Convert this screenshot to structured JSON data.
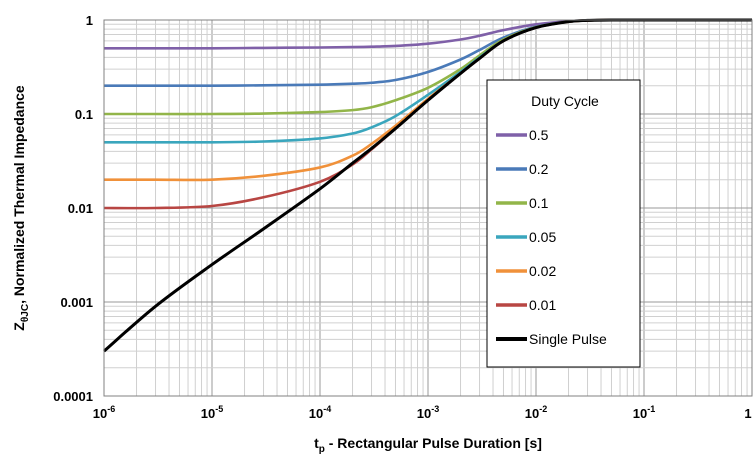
{
  "chart_data": {
    "type": "line",
    "xscale": "log",
    "yscale": "log",
    "xlim": [
      1e-06,
      1
    ],
    "ylim": [
      0.0001,
      1
    ],
    "grid": true,
    "legend_position": "right",
    "x_ticks": [
      {
        "base": "10",
        "exp": "-6"
      },
      {
        "base": "10",
        "exp": "-5"
      },
      {
        "base": "10",
        "exp": "-4"
      },
      {
        "base": "10",
        "exp": "-3"
      },
      {
        "base": "10",
        "exp": "-2"
      },
      {
        "base": "10",
        "exp": "-1"
      },
      {
        "base": "1",
        "exp": ""
      }
    ],
    "y_ticks": [
      "1",
      "0.1",
      "0.01",
      "0.001",
      "0.0001"
    ],
    "xlabel": {
      "pre": "t",
      "sub": "p",
      "post": " -  Rectangular Pulse Duration [s]"
    },
    "ylabel": {
      "pre": "Z",
      "sub": "θJC",
      "post": ", Normalized Thermal Impedance"
    },
    "legend_title": "Duty Cycle",
    "x": [
      1e-06,
      3e-06,
      1e-05,
      3e-05,
      0.0001,
      0.0002,
      0.0003,
      0.0005,
      0.001,
      0.002,
      0.003,
      0.005,
      0.01,
      0.02,
      0.03,
      0.05,
      0.1,
      1
    ],
    "series": [
      {
        "name": "0.5",
        "color": "#7f60a8",
        "values": [
          0.5,
          0.5,
          0.5,
          0.505,
          0.51,
          0.515,
          0.52,
          0.53,
          0.56,
          0.62,
          0.68,
          0.78,
          0.9,
          0.97,
          0.99,
          1,
          1,
          1
        ]
      },
      {
        "name": "0.2",
        "color": "#4a7ab8",
        "values": [
          0.2,
          0.2,
          0.2,
          0.202,
          0.205,
          0.21,
          0.215,
          0.23,
          0.28,
          0.38,
          0.48,
          0.65,
          0.85,
          0.96,
          0.99,
          1,
          1,
          1
        ]
      },
      {
        "name": "0.1",
        "color": "#92b549",
        "values": [
          0.1,
          0.1,
          0.1,
          0.101,
          0.105,
          0.11,
          0.118,
          0.14,
          0.19,
          0.3,
          0.42,
          0.62,
          0.84,
          0.96,
          0.99,
          1,
          1,
          1
        ]
      },
      {
        "name": "0.05",
        "color": "#3aa6bd",
        "values": [
          0.05,
          0.05,
          0.05,
          0.051,
          0.055,
          0.062,
          0.072,
          0.095,
          0.16,
          0.28,
          0.4,
          0.6,
          0.83,
          0.96,
          0.99,
          1,
          1,
          1
        ]
      },
      {
        "name": "0.02",
        "color": "#f0913a",
        "values": [
          0.02,
          0.02,
          0.02,
          0.022,
          0.027,
          0.036,
          0.048,
          0.075,
          0.145,
          0.27,
          0.39,
          0.6,
          0.83,
          0.96,
          0.99,
          1,
          1,
          1
        ]
      },
      {
        "name": "0.01",
        "color": "#b84643",
        "values": [
          0.01,
          0.01,
          0.0105,
          0.013,
          0.019,
          0.029,
          0.042,
          0.07,
          0.14,
          0.27,
          0.39,
          0.6,
          0.83,
          0.96,
          0.99,
          1,
          1,
          1
        ]
      },
      {
        "name": "Single Pulse",
        "color": "#000000",
        "values": [
          0.0003,
          0.0009,
          0.0025,
          0.006,
          0.016,
          0.03,
          0.043,
          0.07,
          0.14,
          0.27,
          0.39,
          0.6,
          0.83,
          0.96,
          0.99,
          1,
          1,
          1
        ]
      }
    ]
  }
}
